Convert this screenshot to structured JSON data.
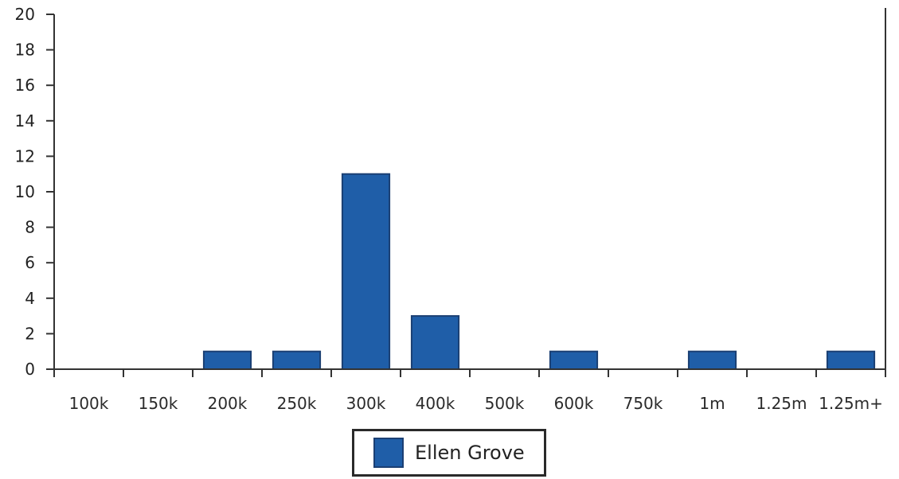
{
  "chart_data": {
    "type": "bar",
    "categories": [
      "100k",
      "150k",
      "200k",
      "250k",
      "300k",
      "400k",
      "500k",
      "600k",
      "750k",
      "1m",
      "1.25m",
      "1.25m+"
    ],
    "series": [
      {
        "name": "Ellen Grove",
        "values": [
          0,
          0,
          1,
          1,
          11,
          3,
          0,
          1,
          0,
          1,
          0,
          1
        ]
      }
    ],
    "ylim": [
      0,
      20
    ],
    "yticks": [
      0,
      2,
      4,
      6,
      8,
      10,
      12,
      14,
      16,
      18,
      20
    ],
    "grid": false,
    "legend_placement": "bottom-center",
    "colors": {
      "bar": "#1f5ea8",
      "bar_edge": "#1b3f73",
      "axis": "#333333"
    }
  }
}
